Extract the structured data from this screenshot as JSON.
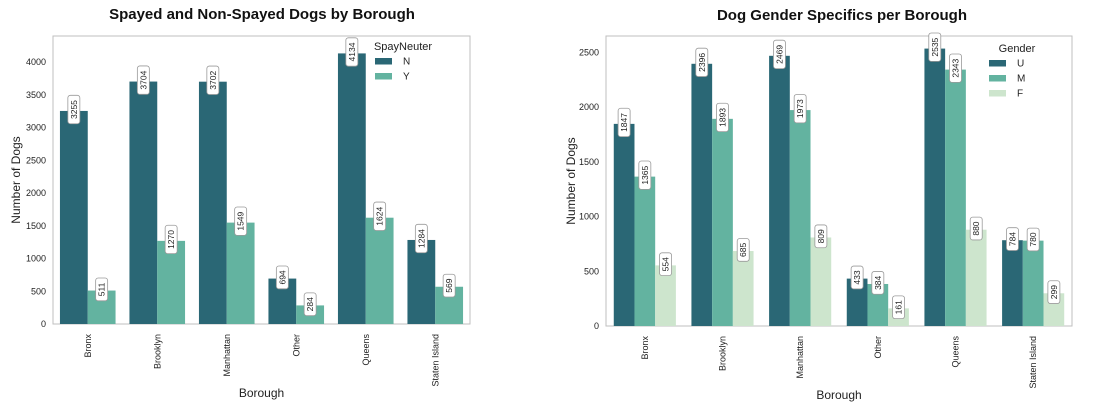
{
  "colors": {
    "dark": "#2a6775",
    "mid": "#63b3a0",
    "light": "#cde5cd"
  },
  "chart_data": [
    {
      "type": "bar",
      "title": "Spayed and Non-Spayed Dogs by Borough",
      "xlabel": "Borough",
      "ylabel": "Number of Dogs",
      "categories": [
        "Bronx",
        "Brooklyn",
        "Manhattan",
        "Other",
        "Queens",
        "Staten Island"
      ],
      "ylim": [
        0,
        4400
      ],
      "yticks": [
        0,
        500,
        1000,
        1500,
        2000,
        2500,
        3000,
        3500,
        4000
      ],
      "legend_title": "SpayNeuter",
      "legend_position": "top-right",
      "grid": false,
      "series": [
        {
          "name": "N",
          "values": [
            3255,
            3704,
            3702,
            694,
            4134,
            1284
          ]
        },
        {
          "name": "Y",
          "values": [
            511,
            1270,
            1549,
            284,
            1624,
            569
          ]
        }
      ]
    },
    {
      "type": "bar",
      "title": "Dog Gender Specifics per Borough",
      "xlabel": "Borough",
      "ylabel": "Number of Dogs",
      "categories": [
        "Bronx",
        "Brooklyn",
        "Manhattan",
        "Other",
        "Queens",
        "Staten Island"
      ],
      "ylim": [
        0,
        2650
      ],
      "yticks": [
        0,
        500,
        1000,
        1500,
        2000,
        2500
      ],
      "legend_title": "Gender",
      "legend_position": "top-right",
      "grid": false,
      "series": [
        {
          "name": "U",
          "values": [
            1847,
            2396,
            2469,
            433,
            2535,
            784
          ]
        },
        {
          "name": "M",
          "values": [
            1365,
            1893,
            1973,
            384,
            2343,
            780
          ]
        },
        {
          "name": "F",
          "values": [
            554,
            685,
            809,
            161,
            880,
            299
          ]
        }
      ]
    }
  ]
}
